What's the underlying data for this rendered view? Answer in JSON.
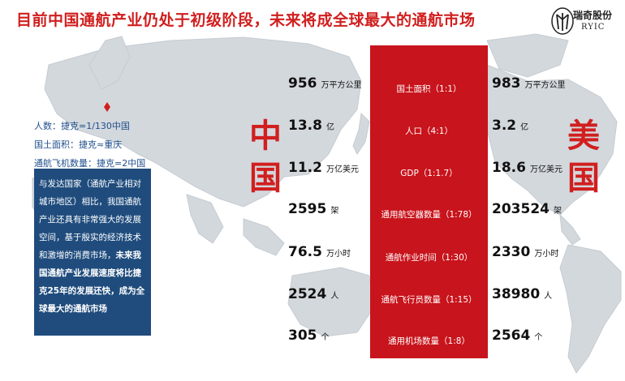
{
  "title": "目前中国通航产业仍处于初级阶段，未来将成全球最大的通航市场",
  "logo": {
    "brand_cn": "瑞奇股份",
    "brand_en": "RYIC"
  },
  "info_lines": [
    "人数：捷克=1/130中国",
    "国土面积：捷克≈重庆",
    "通航飞机数量：捷克=2中国"
  ],
  "description": {
    "normal": "与发达国家（通航产业相对城市地区）相比，我国通航产业还具有非常强大的发展空间，基于殷实的经济技术和激增的消费市场，",
    "bold": "未来我国通航产业发展速度将比捷克25年的发展还快，成为全球最大的通航市场"
  },
  "china_label": "中国",
  "usa_label": "美国",
  "rows": [
    {
      "metric": "国土面积（1:1）",
      "cn_value": "956",
      "cn_unit": "万平方公里",
      "us_value": "983",
      "us_unit": "万平方公里"
    },
    {
      "metric": "人口（4:1）",
      "cn_value": "13.8",
      "cn_unit": "亿",
      "us_value": "3.2",
      "us_unit": "亿"
    },
    {
      "metric": "GDP（1:1.7）",
      "cn_value": "11.2",
      "cn_unit": "万亿美元",
      "us_value": "18.6",
      "us_unit": "万亿美元"
    },
    {
      "metric": "通用航空器数量（1:78）",
      "cn_value": "2595",
      "cn_unit": "架",
      "us_value": "203524",
      "us_unit": "架"
    },
    {
      "metric": "通航作业时间（1:30）",
      "cn_value": "76.5",
      "cn_unit": "万小时",
      "us_value": "2330",
      "us_unit": "万小时"
    },
    {
      "metric": "通航飞行员数量（1:15）",
      "cn_value": "2524",
      "cn_unit": "人",
      "us_value": "38980",
      "us_unit": "人"
    },
    {
      "metric": "通用机场数量（1:8）",
      "cn_value": "305",
      "cn_unit": "个",
      "us_value": "2564",
      "us_unit": "个"
    }
  ]
}
